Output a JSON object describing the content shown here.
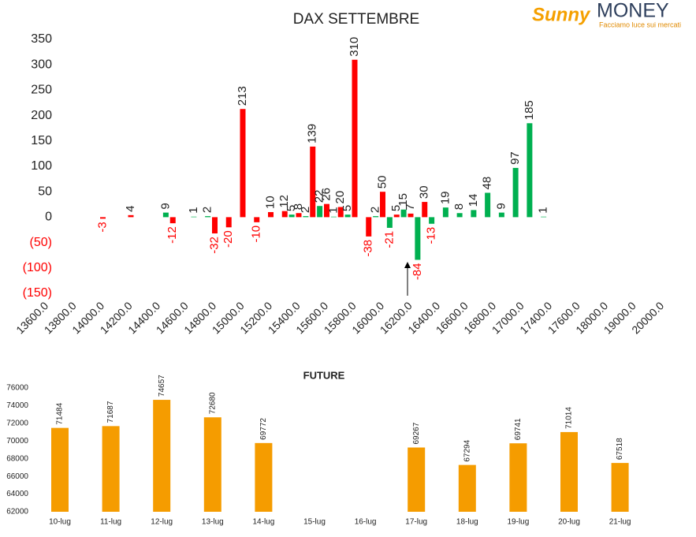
{
  "logo": {
    "brand": "Sunny",
    "name": "MONEY",
    "tagline": "Facciamo luce sui mercati"
  },
  "chart_data": [
    {
      "type": "bar",
      "title": "DAX SETTEMBRE",
      "categories": [
        "13600.0",
        null,
        null,
        null,
        "13800.0",
        null,
        null,
        null,
        "14000.0",
        null,
        null,
        null,
        "14200.0",
        null,
        null,
        null,
        "14400.0",
        null,
        null,
        null,
        "14600.0",
        null,
        null,
        null,
        "14800.0",
        null,
        null,
        null,
        "15000.0",
        null,
        null,
        null,
        "15200.0",
        null,
        null,
        null,
        "15400.0",
        null,
        null,
        null,
        "15600.0",
        null,
        null,
        null,
        "15800.0",
        null,
        null,
        null,
        "16000.0",
        null,
        null,
        null,
        "16200.0",
        null,
        null,
        null,
        "16400.0",
        null,
        null,
        null,
        "16600.0",
        null,
        null,
        null,
        "16800.0",
        null,
        null,
        null,
        "17000.0",
        null,
        null,
        null,
        "17400.0",
        null,
        null,
        null,
        "17600.0",
        null,
        null,
        null,
        "18000.0",
        null,
        null,
        null,
        "19000.0",
        null,
        null,
        null,
        "20000.0"
      ],
      "series": [
        {
          "color": "#ff0000",
          "values": [
            null,
            null,
            null,
            null,
            null,
            null,
            null,
            null,
            -3,
            null,
            null,
            null,
            4,
            null,
            null,
            null,
            null,
            null,
            -12,
            null,
            null,
            null,
            null,
            null,
            -32,
            null,
            -20,
            null,
            213,
            null,
            -10,
            null,
            10,
            null,
            12,
            null,
            8,
            null,
            139,
            null,
            26,
            null,
            20,
            null,
            310,
            null,
            -38,
            null,
            50,
            null,
            5,
            null,
            7,
            null,
            30,
            null,
            null,
            null,
            null,
            null,
            null,
            null,
            null,
            null,
            null,
            null,
            null,
            null,
            null,
            null,
            null,
            null,
            null,
            null,
            null,
            null,
            null,
            null,
            null,
            null,
            null,
            null,
            null,
            null,
            null,
            null,
            null,
            null,
            null
          ]
        },
        {
          "color": "#00b050",
          "values": [
            null,
            null,
            null,
            null,
            null,
            null,
            null,
            null,
            null,
            null,
            null,
            null,
            null,
            null,
            null,
            null,
            null,
            9,
            null,
            null,
            null,
            1,
            null,
            2,
            null,
            null,
            null,
            null,
            null,
            null,
            null,
            null,
            null,
            null,
            null,
            5,
            null,
            2,
            null,
            22,
            null,
            1,
            null,
            5,
            null,
            null,
            null,
            2,
            null,
            -21,
            null,
            15,
            null,
            -84,
            null,
            -13,
            null,
            19,
            null,
            8,
            null,
            14,
            null,
            48,
            null,
            9,
            null,
            97,
            null,
            185,
            null,
            1,
            null,
            null,
            null,
            null,
            null,
            null,
            null,
            null,
            null,
            null,
            null,
            null,
            null,
            null,
            null,
            null,
            null
          ]
        }
      ],
      "negative_color": "#ff0000",
      "ylim": [
        -150,
        350
      ],
      "yticks": [
        350,
        300,
        250,
        200,
        150,
        100,
        50,
        0,
        {
          "value": -50,
          "label": "(50)"
        },
        {
          "value": -100,
          "label": "(100)"
        },
        {
          "value": -150,
          "label": "(150)"
        }
      ],
      "grid": false
    },
    {
      "type": "bar",
      "title": "FUTURE",
      "categories": [
        "10-lug",
        "11-lug",
        "12-lug",
        "13-lug",
        "14-lug",
        "15-lug",
        "16-lug",
        "17-lug",
        "18-lug",
        "19-lug",
        "20-lug",
        "21-lug"
      ],
      "values": [
        71484,
        71687,
        74657,
        72680,
        69772,
        null,
        null,
        69267,
        67294,
        69741,
        71014,
        67518
      ],
      "color": "#f59c00",
      "ylim": [
        62000,
        76000
      ],
      "yticks": [
        76000,
        74000,
        72000,
        70000,
        68000,
        66000,
        64000,
        62000
      ],
      "grid": false
    }
  ]
}
